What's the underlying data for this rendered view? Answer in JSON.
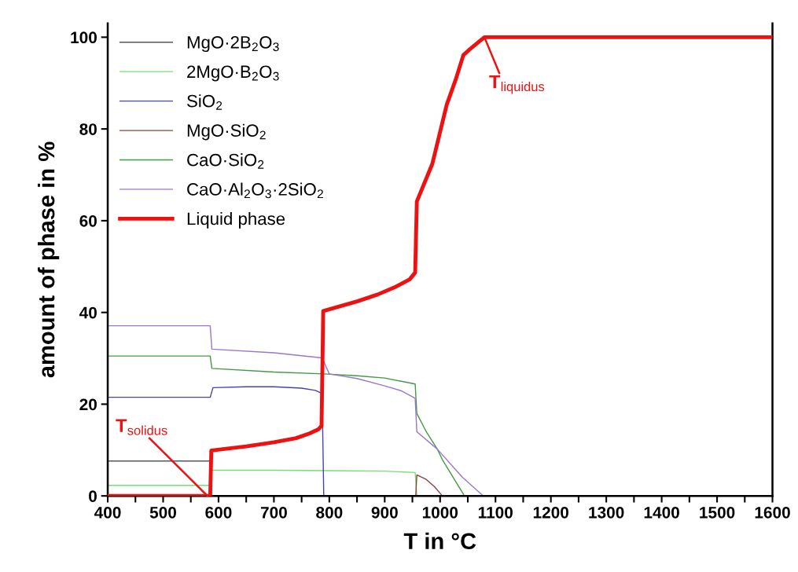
{
  "chart_data": {
    "type": "line",
    "xlabel": "T in °C",
    "ylabel": "amount of phase in %",
    "xlim": [
      400,
      1600
    ],
    "ylim": [
      0,
      103
    ],
    "xticks": [
      400,
      {
        "value": 450,
        "label": null
      },
      500,
      {
        "value": 550,
        "label": null
      },
      600,
      {
        "value": 650,
        "label": null
      },
      700,
      {
        "value": 750,
        "label": null
      },
      800,
      {
        "value": 850,
        "label": null
      },
      900,
      {
        "value": 950,
        "label": null
      },
      1000,
      {
        "value": 1050,
        "label": null
      },
      1100,
      {
        "value": 1150,
        "label": null
      },
      1200,
      {
        "value": 1250,
        "label": null
      },
      1300,
      {
        "value": 1350,
        "label": null
      },
      1400,
      {
        "value": 1450,
        "label": null
      },
      1500,
      {
        "value": 1550,
        "label": null
      },
      1600
    ],
    "yticks": [
      0,
      20,
      40,
      60,
      80,
      100
    ],
    "grid": false,
    "legend": "top left",
    "marker": "none",
    "line_style": "solid",
    "series": [
      {
        "name": "MgO·2B$_{2}$O$_{3}$",
        "color": "#555566",
        "x": [
          400,
          585,
          587
        ],
        "values": [
          7.6,
          7.6,
          0
        ]
      },
      {
        "name": "2MgO·B$_{2}$O$_{3}$",
        "color": "#77dd77",
        "x": [
          400,
          585,
          587,
          700,
          800,
          900,
          955,
          958
        ],
        "values": [
          2.3,
          2.3,
          5.6,
          5.6,
          5.5,
          5.4,
          5.1,
          0
        ]
      },
      {
        "name": "SiO$_{2}$",
        "color": "#4444aa",
        "x": [
          400,
          585,
          590,
          650,
          700,
          750,
          775,
          787,
          790
        ],
        "values": [
          21.5,
          21.5,
          23.6,
          23.8,
          23.8,
          23.5,
          23.0,
          22.3,
          0
        ]
      },
      {
        "name": "MgO·SiO$_{2}$",
        "color": "#884444",
        "x": [
          400,
          956,
          958,
          975,
          990,
          1004,
          1600
        ],
        "values": [
          0,
          0,
          4.6,
          3.6,
          2.0,
          0,
          0
        ]
      },
      {
        "name": "CaO·SiO$_{2}$",
        "color": "#449944",
        "x": [
          400,
          585,
          588,
          700,
          790,
          850,
          900,
          955,
          958,
          975,
          995,
          1005,
          1044,
          1600
        ],
        "values": [
          30.5,
          30.5,
          27.8,
          27.0,
          26.6,
          26.2,
          25.7,
          24.4,
          18.0,
          14.0,
          10.2,
          7.7,
          0,
          0
        ]
      },
      {
        "name": "CaO·Al$_{2}$O$_{3}$·2SiO$_{2}$",
        "color": "#9977cc",
        "x": [
          400,
          585,
          588,
          700,
          787,
          800,
          850,
          900,
          930,
          955,
          958,
          995,
          1040,
          1078,
          1600
        ],
        "values": [
          37.1,
          37.1,
          32.0,
          31.2,
          30.1,
          26.6,
          25.6,
          24.0,
          22.9,
          21.3,
          14.0,
          10.2,
          4.1,
          0,
          0
        ]
      },
      {
        "name": "Liquid phase",
        "color": "#ee1111",
        "x": [
          400,
          585,
          587,
          650,
          700,
          740,
          764,
          780,
          786,
          789,
          850,
          887,
          920,
          945,
          955,
          958,
          986,
          1012,
          1028,
          1042,
          1052,
          1080,
          1600
        ],
        "values": [
          0,
          0,
          9.9,
          10.8,
          11.7,
          12.6,
          13.6,
          14.5,
          15.3,
          40.3,
          42.4,
          43.9,
          45.6,
          47.2,
          48.7,
          64.2,
          72.4,
          85.3,
          90.7,
          96.1,
          97.2,
          100,
          100
        ]
      }
    ],
    "annotations": [
      {
        "text": "T$_{solidus}$",
        "x": 580,
        "y": 0
      },
      {
        "text": "T$_{liquidus}$",
        "x": 1080,
        "y": 100
      }
    ]
  }
}
